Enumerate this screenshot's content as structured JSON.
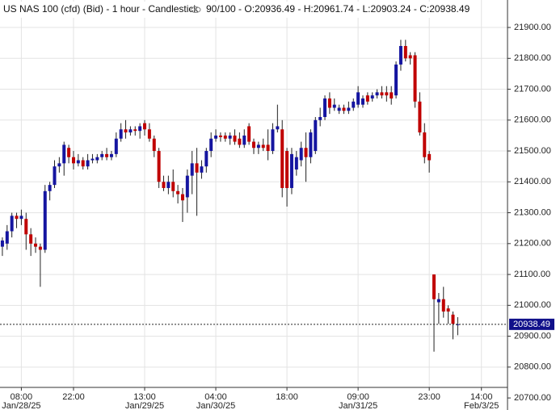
{
  "chart_data": {
    "type": "candlestick",
    "title": "US NAS 100 (cfd) (Bid) - 1 hour - Candlestick",
    "subtitle": "90/100 - O:20936.49 - H:20961.74 - L:20903.24 - C:20938.49",
    "up_color": "#1515a0",
    "down_color": "#c00000",
    "grid": true,
    "ylim": [
      20661,
      21989
    ],
    "yticks": [
      {
        "value": 20700,
        "label": "20700.00"
      },
      {
        "value": 20800,
        "label": "20800.00"
      },
      {
        "value": 20900,
        "label": "20900.00"
      },
      {
        "value": 21000,
        "label": "21000.00"
      },
      {
        "value": 21100,
        "label": "21100.00"
      },
      {
        "value": 21200,
        "label": "21200.00"
      },
      {
        "value": 21300,
        "label": "21300.00"
      },
      {
        "value": 21400,
        "label": "21400.00"
      },
      {
        "value": 21500,
        "label": "21500.00"
      },
      {
        "value": 21600,
        "label": "21600.00"
      },
      {
        "value": 21700,
        "label": "21700.00"
      },
      {
        "value": 21800,
        "label": "21800.00"
      },
      {
        "value": 21900,
        "label": "21900.00"
      }
    ],
    "last_price": 20938.49,
    "categories": [
      null,
      null,
      null,
      null,
      "08:00",
      null,
      null,
      null,
      null,
      null,
      null,
      null,
      null,
      null,
      null,
      "22:00",
      null,
      null,
      null,
      null,
      null,
      null,
      null,
      null,
      null,
      null,
      null,
      null,
      null,
      null,
      "13:00",
      null,
      null,
      null,
      null,
      null,
      null,
      null,
      null,
      null,
      null,
      null,
      null,
      null,
      null,
      "04:00",
      null,
      null,
      null,
      null,
      null,
      null,
      null,
      null,
      null,
      null,
      null,
      null,
      null,
      null,
      "18:00",
      null,
      null,
      null,
      null,
      null,
      null,
      null,
      null,
      null,
      null,
      null,
      null,
      null,
      null,
      "09:00",
      null,
      null,
      null,
      null,
      null,
      null,
      null,
      null,
      null,
      null,
      null,
      null,
      null,
      null,
      "23:00",
      null,
      null,
      null,
      null,
      null,
      null,
      null,
      null,
      null,
      null,
      "14:00",
      null,
      null,
      null,
      null,
      null
    ],
    "dates": [
      null,
      null,
      null,
      null,
      "Jan/28/25",
      null,
      null,
      null,
      null,
      null,
      null,
      null,
      null,
      null,
      null,
      null,
      null,
      null,
      null,
      null,
      null,
      null,
      null,
      null,
      null,
      null,
      null,
      null,
      null,
      null,
      "Jan/29/25",
      null,
      null,
      null,
      null,
      null,
      null,
      null,
      null,
      null,
      null,
      null,
      null,
      null,
      null,
      "Jan/30/25",
      null,
      null,
      null,
      null,
      null,
      null,
      null,
      null,
      null,
      null,
      null,
      null,
      null,
      null,
      null,
      null,
      null,
      null,
      null,
      null,
      null,
      null,
      null,
      null,
      null,
      null,
      null,
      null,
      null,
      "Jan/31/25",
      null,
      null,
      null,
      null,
      null,
      null,
      null,
      null,
      null,
      null,
      null,
      null,
      null,
      null,
      null,
      null,
      null,
      null,
      null,
      null,
      null,
      null,
      null,
      null,
      null,
      "Feb/3/25",
      null,
      null,
      null,
      null,
      null
    ],
    "open": [
      21190,
      21200,
      21240,
      21290,
      21280,
      21280,
      21230,
      21200,
      21190,
      21180,
      21370,
      21390,
      21450,
      21460,
      21510,
      21480,
      21460,
      21470,
      21450,
      21470,
      21470,
      21480,
      21490,
      21480,
      21490,
      21540,
      21570,
      21560,
      21570,
      21565,
      21590,
      21570,
      21540,
      21500,
      21400,
      21380,
      21400,
      21370,
      21360,
      21350,
      21420,
      21460,
      21430,
      21450,
      21500,
      21540,
      21550,
      21550,
      21540,
      21550,
      21540,
      21520,
      21580,
      21530,
      21510,
      21520,
      21520,
      21500,
      21570,
      21570,
      21500,
      21380,
      21440,
      21470,
      21510,
      21480,
      21500,
      21600,
      21610,
      21670,
      21640,
      21630,
      21640,
      21630,
      21640,
      21650,
      21650,
      21680,
      21670,
      21680,
      21690,
      21690,
      21690,
      21680,
      21780,
      21840,
      21810,
      21810,
      21660,
      21560,
      21490,
      21100,
      21010,
      21020,
      20990,
      20970,
      20936.49,
      null,
      null,
      null,
      null,
      null,
      null,
      null,
      null,
      null,
      null
    ],
    "high": [
      21220,
      21260,
      21300,
      21300,
      21310,
      21300,
      21250,
      21220,
      21200,
      21390,
      21400,
      21470,
      21480,
      21530,
      21520,
      21500,
      21490,
      21480,
      21490,
      21490,
      21490,
      21500,
      21510,
      21500,
      21560,
      21590,
      21600,
      21580,
      21580,
      21590,
      21600,
      21590,
      21550,
      21510,
      21420,
      21420,
      21440,
      21390,
      21380,
      21440,
      21500,
      21510,
      21470,
      21510,
      21560,
      21570,
      21560,
      21560,
      21560,
      21570,
      21560,
      21570,
      21590,
      21540,
      21530,
      21540,
      21570,
      21590,
      21650,
      21600,
      21510,
      21510,
      21500,
      21530,
      21560,
      21570,
      21610,
      21640,
      21680,
      21690,
      21670,
      21650,
      21650,
      21660,
      21670,
      21710,
      21680,
      21690,
      21690,
      21700,
      21710,
      21710,
      21710,
      21790,
      21860,
      21860,
      21820,
      21820,
      21690,
      21590,
      21500,
      21100,
      21040,
      21060,
      21000,
      20980,
      20961.74,
      null,
      null,
      null,
      null,
      null,
      null,
      null,
      null,
      null,
      null
    ],
    "low": [
      21160,
      21180,
      21220,
      21250,
      21260,
      21180,
      21160,
      21170,
      21060,
      21170,
      21340,
      21380,
      21430,
      21420,
      21460,
      21440,
      21450,
      21440,
      21440,
      21460,
      21460,
      21470,
      21470,
      21470,
      21480,
      21530,
      21540,
      21550,
      21550,
      21540,
      21550,
      21530,
      21480,
      21380,
      21370,
      21360,
      21350,
      21330,
      21270,
      21300,
      21360,
      21290,
      21410,
      21430,
      21480,
      21530,
      21530,
      21530,
      21520,
      21520,
      21510,
      21510,
      21520,
      21490,
      21490,
      21500,
      21470,
      21490,
      21560,
      21350,
      21320,
      21360,
      21420,
      21450,
      21400,
      21460,
      21490,
      21580,
      21600,
      21620,
      21630,
      21620,
      21620,
      21620,
      21630,
      21640,
      21640,
      21650,
      21660,
      21670,
      21670,
      21660,
      21650,
      21670,
      21760,
      21790,
      21780,
      21640,
      21550,
      21460,
      21430,
      20850,
      20940,
      20960,
      20940,
      20890,
      20903.24,
      null,
      null,
      null,
      null,
      null,
      null,
      null,
      null,
      null,
      null
    ],
    "close": [
      21210,
      21240,
      21290,
      21280,
      21290,
      21230,
      21200,
      21190,
      21180,
      21370,
      21390,
      21450,
      21460,
      21520,
      21480,
      21460,
      21470,
      21450,
      21470,
      21475,
      21480,
      21490,
      21480,
      21490,
      21540,
      21570,
      21560,
      21570,
      21565,
      21580,
      21570,
      21540,
      21500,
      21400,
      21380,
      21400,
      21370,
      21360,
      21340,
      21420,
      21460,
      21430,
      21450,
      21500,
      21540,
      21550,
      21545,
      21540,
      21550,
      21530,
      21520,
      21550,
      21530,
      21510,
      21520,
      21510,
      21500,
      21570,
      21580,
      21380,
      21380,
      21490,
      21480,
      21510,
      21480,
      21560,
      21600,
      21610,
      21670,
      21640,
      21650,
      21640,
      21630,
      21640,
      21660,
      21690,
      21670,
      21660,
      21680,
      21690,
      21680,
      21680,
      21670,
      21780,
      21840,
      21800,
      21800,
      21660,
      21560,
      21480,
      21470,
      21020,
      21020,
      20980,
      20980,
      20940,
      20938.49,
      null,
      null,
      null,
      null,
      null,
      null,
      null,
      null,
      null,
      null
    ]
  }
}
